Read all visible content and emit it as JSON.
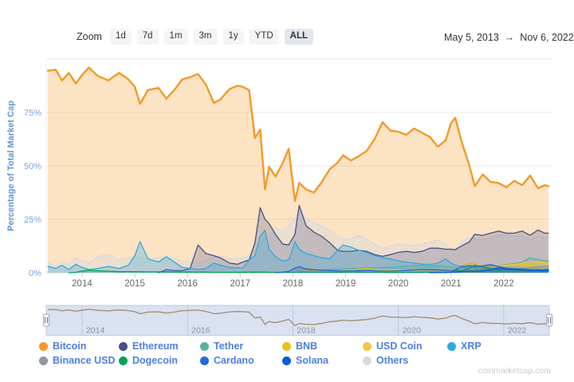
{
  "toolbar": {
    "zoom_label": "Zoom",
    "range_buttons": [
      "1d",
      "7d",
      "1m",
      "3m",
      "1y",
      "YTD",
      "ALL"
    ],
    "selected_range": "ALL",
    "date_range": {
      "start": "May 5, 2013",
      "separator": "→",
      "end": "Nov 6, 2022"
    }
  },
  "watermark": "coinmarketcap.com",
  "ui_colors": {
    "legend_text": "#4d7fe0",
    "y_axis_title": "#5f96d6",
    "y_tick_labels": "#79a5dc",
    "x_tick_labels": "#666666",
    "gridline": "#e9e9e9",
    "navigator_mask": "#ccd6ec",
    "navigator_line": "#a98f77",
    "selected_button_bg": "#e3e6ef"
  },
  "chart_data": {
    "type": "area",
    "title": "",
    "ylabel": "Percentage of Total Market Cap",
    "ylim": [
      0,
      100
    ],
    "grid": true,
    "legend_position": "bottom",
    "y_ticks": [
      {
        "value": 75,
        "label": "75%"
      },
      {
        "value": 50,
        "label": "50%"
      },
      {
        "value": 25,
        "label": "25%"
      },
      {
        "value": 0,
        "label": "0%"
      }
    ],
    "x_axis_ticks": [
      2014,
      2015,
      2016,
      2017,
      2018,
      2019,
      2020,
      2021,
      2022
    ],
    "x_years": [
      2013.35,
      2013.5,
      2013.62,
      2013.75,
      2013.88,
      2014,
      2014.13,
      2014.3,
      2014.5,
      2014.7,
      2014.88,
      2015,
      2015.1,
      2015.25,
      2015.45,
      2015.6,
      2015.75,
      2015.9,
      2016.05,
      2016.2,
      2016.35,
      2016.5,
      2016.62,
      2016.8,
      2016.95,
      2017.05,
      2017.17,
      2017.28,
      2017.38,
      2017.47,
      2017.55,
      2017.67,
      2017.8,
      2017.92,
      2018.04,
      2018.12,
      2018.25,
      2018.4,
      2018.55,
      2018.7,
      2018.85,
      2018.95,
      2019.1,
      2019.25,
      2019.4,
      2019.55,
      2019.7,
      2019.85,
      2020,
      2020.15,
      2020.3,
      2020.45,
      2020.6,
      2020.75,
      2020.9,
      2021,
      2021.08,
      2021.2,
      2021.35,
      2021.45,
      2021.6,
      2021.75,
      2021.9,
      2022.05,
      2022.2,
      2022.35,
      2022.5,
      2022.65,
      2022.78,
      2022.85
    ],
    "series": [
      {
        "name": "Bitcoin",
        "color": "#f39a27",
        "values": [
          94.5,
          95,
          90,
          93.5,
          88.5,
          92.5,
          96,
          92,
          90,
          93.5,
          90.5,
          87,
          79,
          85.5,
          86.5,
          81.5,
          85.5,
          90.5,
          91.5,
          93,
          88,
          79.5,
          81,
          86,
          87.5,
          87,
          85.5,
          63,
          67,
          39,
          49.5,
          45,
          51,
          58,
          33.5,
          42,
          39,
          37.5,
          42.5,
          48.5,
          51.5,
          55,
          52.5,
          54.5,
          57,
          62.5,
          70.5,
          66.5,
          66,
          64.5,
          67.5,
          65.5,
          63.5,
          59,
          62,
          70,
          72.5,
          61.5,
          50,
          40.5,
          46,
          42.5,
          42,
          40,
          43,
          41,
          45.5,
          39.5,
          41,
          40.5
        ]
      },
      {
        "name": "Ethereum",
        "color": "#474f86",
        "values": [
          0,
          0,
          0,
          0,
          0,
          0,
          0,
          0,
          0,
          0,
          0,
          0,
          0,
          0,
          0,
          1.5,
          1,
          1,
          2,
          13,
          9,
          8,
          7,
          4.5,
          4,
          5,
          6,
          14,
          30.5,
          25,
          23,
          18,
          13.5,
          13,
          18,
          31.5,
          22,
          19,
          17,
          14,
          10.5,
          10,
          10,
          10.5,
          10,
          8.5,
          7.7,
          8.5,
          9.5,
          10,
          9.5,
          10,
          11.5,
          11.5,
          11,
          11,
          10.8,
          12.5,
          14.5,
          18,
          17.5,
          18.5,
          19.5,
          18.5,
          18.5,
          19.5,
          17.5,
          20,
          18.5,
          18.5
        ]
      },
      {
        "name": "Tether",
        "color": "#55b3a0",
        "values": [
          0,
          0,
          0,
          0,
          0,
          0,
          0,
          0,
          0,
          0,
          0,
          0,
          0,
          0,
          0,
          0,
          0,
          0,
          0,
          0,
          0,
          0,
          0,
          0,
          0,
          0.1,
          0.1,
          0.1,
          0.15,
          0.2,
          0.2,
          0.25,
          0.3,
          0.3,
          0.5,
          0.6,
          0.9,
          1.1,
          1.3,
          1.5,
          1.7,
          1.8,
          2,
          2.1,
          2.3,
          2.2,
          2.4,
          2.6,
          2.8,
          3.2,
          3.4,
          3.2,
          3,
          3.3,
          3,
          2.6,
          2.4,
          2.3,
          2.5,
          3,
          3.3,
          3.1,
          3.3,
          3.8,
          4.3,
          5,
          7,
          6.2,
          5.6,
          5.5
        ]
      },
      {
        "name": "BNB",
        "color": "#eebd20",
        "values": [
          0,
          0,
          0,
          0,
          0,
          0,
          0,
          0,
          0,
          0,
          0,
          0,
          0,
          0,
          0,
          0,
          0,
          0,
          0,
          0,
          0,
          0,
          0,
          0,
          0,
          0,
          0,
          0,
          0,
          0,
          0,
          0.3,
          0.3,
          0.5,
          0.6,
          0.7,
          0.8,
          1,
          0.9,
          0.8,
          0.9,
          1,
          1.2,
          1.7,
          2,
          1.6,
          1.3,
          1.3,
          1.2,
          1,
          1.1,
          1.1,
          1,
          1.1,
          1,
          1,
          1.2,
          2.5,
          4.8,
          3.8,
          3.5,
          3.1,
          3.3,
          3.6,
          3.9,
          3.8,
          4,
          4.4,
          4.6,
          4.6
        ]
      },
      {
        "name": "USD Coin",
        "color": "#f6c544",
        "values": [
          0,
          0,
          0,
          0,
          0,
          0,
          0,
          0,
          0,
          0,
          0,
          0,
          0,
          0,
          0,
          0,
          0,
          0,
          0,
          0,
          0,
          0,
          0,
          0,
          0,
          0,
          0,
          0,
          0,
          0,
          0,
          0,
          0,
          0,
          0,
          0,
          0,
          0,
          0,
          0,
          0.2,
          0.25,
          0.3,
          0.35,
          0.4,
          0.4,
          0.45,
          0.5,
          0.6,
          0.7,
          0.8,
          1,
          1.1,
          1.2,
          1.3,
          1.4,
          1.3,
          1.5,
          1.7,
          2,
          2.3,
          2.5,
          2.7,
          3.2,
          3.8,
          4.4,
          5.2,
          5,
          4.8,
          4.6
        ]
      },
      {
        "name": "XRP",
        "color": "#2fa9dd",
        "values": [
          3,
          2,
          3.5,
          1.5,
          4,
          2.5,
          1.5,
          2,
          3,
          2,
          3.5,
          8,
          14.5,
          6.5,
          5,
          7.5,
          5,
          2.5,
          2,
          1.5,
          2,
          4.5,
          3.5,
          2.5,
          2.3,
          2.2,
          6,
          8,
          17,
          20,
          11,
          7.5,
          5.5,
          6,
          14.5,
          11,
          9,
          8,
          7,
          6.5,
          10.5,
          13,
          12,
          10.5,
          9.5,
          8,
          7,
          6.5,
          5.5,
          5,
          4.5,
          4,
          3.8,
          4.5,
          6.5,
          4.5,
          3.5,
          3,
          4.5,
          4,
          3,
          3.2,
          3,
          2.8,
          2.7,
          2.5,
          2,
          2.5,
          2.3,
          2.2
        ]
      },
      {
        "name": "Binance USD",
        "color": "#9097a2",
        "values": [
          0,
          0,
          0,
          0,
          0,
          0,
          0,
          0,
          0,
          0,
          0,
          0,
          0,
          0,
          0,
          0,
          0,
          0,
          0,
          0,
          0,
          0,
          0,
          0,
          0,
          0,
          0,
          0,
          0,
          0,
          0,
          0,
          0,
          0,
          0,
          0,
          0,
          0,
          0,
          0,
          0,
          0,
          0,
          0,
          0,
          0,
          0,
          0,
          0.1,
          0.15,
          0.2,
          0.25,
          0.3,
          0.35,
          0.4,
          0.5,
          0.5,
          0.6,
          0.7,
          0.8,
          0.9,
          1,
          1.2,
          1.6,
          1.8,
          2,
          2.4,
          2.8,
          3,
          3.1
        ]
      },
      {
        "name": "Dogecoin",
        "color": "#00a551",
        "values": [
          0,
          0,
          0,
          0,
          0.2,
          0.8,
          1.2,
          0.9,
          0.7,
          0.5,
          0.5,
          0.5,
          0.5,
          0.4,
          0.4,
          0.4,
          0.35,
          0.3,
          0.3,
          0.25,
          0.25,
          0.2,
          0.2,
          0.2,
          0.2,
          0.25,
          0.3,
          0.35,
          0.3,
          0.25,
          0.2,
          0.2,
          0.15,
          0.15,
          0.2,
          0.25,
          0.2,
          0.2,
          0.2,
          0.2,
          0.2,
          0.2,
          0.2,
          0.25,
          0.2,
          0.2,
          0.15,
          0.15,
          0.15,
          0.15,
          0.15,
          0.15,
          0.15,
          0.15,
          0.15,
          0.2,
          1.2,
          1,
          2.2,
          3.6,
          2.6,
          2,
          1.6,
          1.4,
          1.3,
          1.2,
          1,
          1.2,
          1.5,
          1.6
        ]
      },
      {
        "name": "Cardano",
        "color": "#2169d6",
        "values": [
          0,
          0,
          0,
          0,
          0,
          0,
          0,
          0,
          0,
          0,
          0,
          0,
          0,
          0,
          0,
          0,
          0,
          0,
          0,
          0,
          0,
          0,
          0,
          0,
          0,
          0,
          0,
          0,
          0,
          0,
          0,
          0,
          0.3,
          0.6,
          2.2,
          2.8,
          1.8,
          1.4,
          1.2,
          1,
          0.9,
          0.8,
          0.9,
          1,
          1.1,
          0.9,
          0.8,
          0.8,
          0.9,
          1,
          1.3,
          1.5,
          1.4,
          1.3,
          1.2,
          1.1,
          1.3,
          2.8,
          3.3,
          2.8,
          3.2,
          3.8,
          2.9,
          2.2,
          1.9,
          1.7,
          1.5,
          1.4,
          1.3,
          1.2
        ]
      },
      {
        "name": "Solana",
        "color": "#085ed0",
        "values": [
          0,
          0,
          0,
          0,
          0,
          0,
          0,
          0,
          0,
          0,
          0,
          0,
          0,
          0,
          0,
          0,
          0,
          0,
          0,
          0,
          0,
          0,
          0,
          0,
          0,
          0,
          0,
          0,
          0,
          0,
          0,
          0,
          0,
          0,
          0,
          0,
          0,
          0,
          0,
          0,
          0,
          0,
          0,
          0,
          0,
          0,
          0,
          0,
          0,
          0,
          0,
          0,
          0,
          0.1,
          0.15,
          0.2,
          0.25,
          0.5,
          0.8,
          0.7,
          1,
          1.5,
          2.4,
          1.8,
          1.5,
          1.3,
          1.1,
          1,
          0.9,
          0.8
        ]
      },
      {
        "name": "Others",
        "color": "#d6d9df",
        "values": [
          4.5,
          3,
          5,
          4,
          7,
          5.5,
          4.5,
          7.5,
          8.5,
          6,
          7,
          7.5,
          7,
          6.5,
          7,
          7,
          6.5,
          5.5,
          5,
          4.5,
          6,
          7,
          8,
          6.5,
          6.5,
          7,
          8,
          10,
          13,
          17,
          16,
          21,
          19,
          22,
          25,
          29.5,
          25,
          23.5,
          22,
          20,
          17,
          15.5,
          16,
          17.5,
          15.5,
          13.5,
          11.5,
          12.5,
          13.5,
          13,
          12.5,
          13.5,
          14,
          15.5,
          13,
          11,
          10.5,
          14.5,
          16.5,
          16,
          15.5,
          16.5,
          17.5,
          18,
          17,
          17,
          15.5,
          17,
          16.5,
          16.5
        ]
      }
    ],
    "navigator": {
      "shows_series": "Bitcoin",
      "ticks": [
        2014,
        2016,
        2018,
        2020,
        2022
      ]
    }
  }
}
